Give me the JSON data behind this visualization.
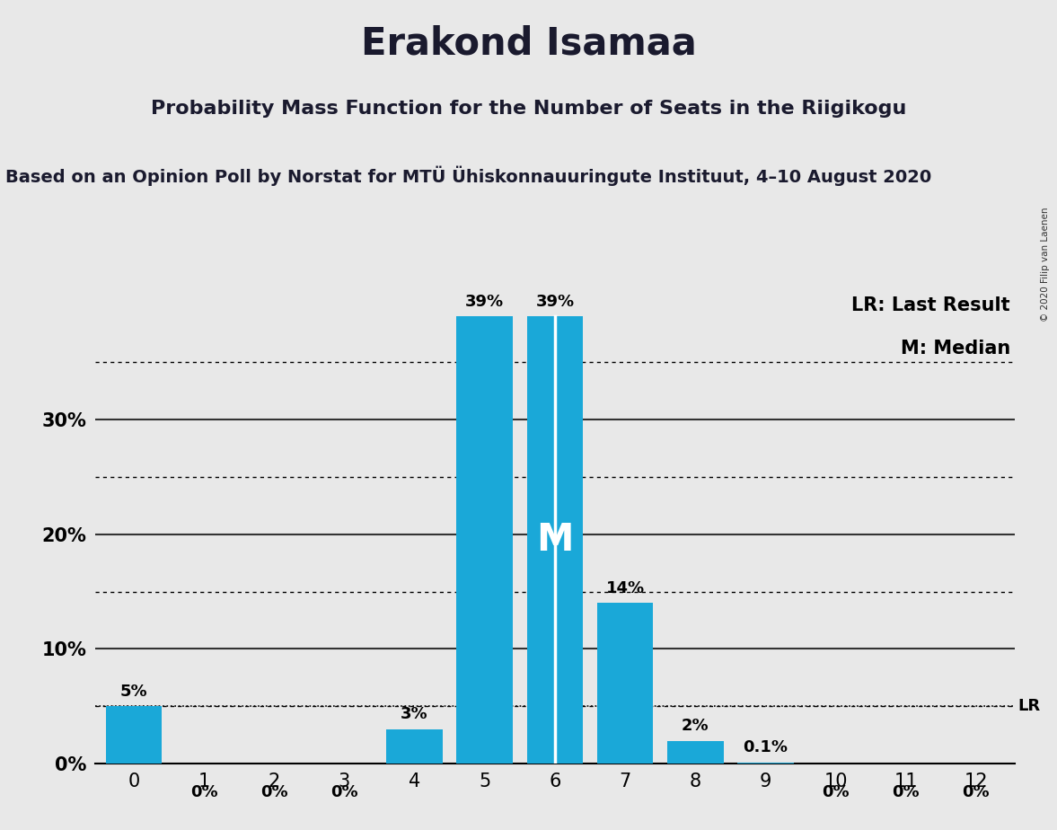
{
  "title": "Erakond Isamaa",
  "subtitle": "Probability Mass Function for the Number of Seats in the Riigikogu",
  "source_line": "Based on an Opinion Poll by Norstat for MTÜ Ühiskonnauuringute Instituut, 4–10 August 2020",
  "categories": [
    0,
    1,
    2,
    3,
    4,
    5,
    6,
    7,
    8,
    9,
    10,
    11,
    12
  ],
  "values": [
    5,
    0,
    0,
    0,
    3,
    39,
    39,
    14,
    2,
    0.1,
    0,
    0,
    0
  ],
  "labels": [
    "5%",
    "0%",
    "0%",
    "0%",
    "3%",
    "39%",
    "39%",
    "14%",
    "2%",
    "0.1%",
    "0%",
    "0%",
    "0%"
  ],
  "bar_color": "#1aa8d8",
  "background_color": "#e8e8e8",
  "median_seat": 6,
  "lr_value": 5.0,
  "lr_label": "LR",
  "legend_lr": "LR: Last Result",
  "legend_m": "M: Median",
  "yticks": [
    0,
    10,
    20,
    30
  ],
  "dotted_lines": [
    5,
    15,
    25,
    35
  ],
  "ylim": [
    0,
    42
  ],
  "xlim_min": -0.55,
  "xlim_max": 12.55,
  "copyright": "© 2020 Filip van Laenen",
  "title_fontsize": 30,
  "subtitle_fontsize": 16,
  "source_fontsize": 14,
  "tick_fontsize": 15,
  "label_fontsize": 13,
  "legend_fontsize": 15,
  "M_fontsize": 30
}
